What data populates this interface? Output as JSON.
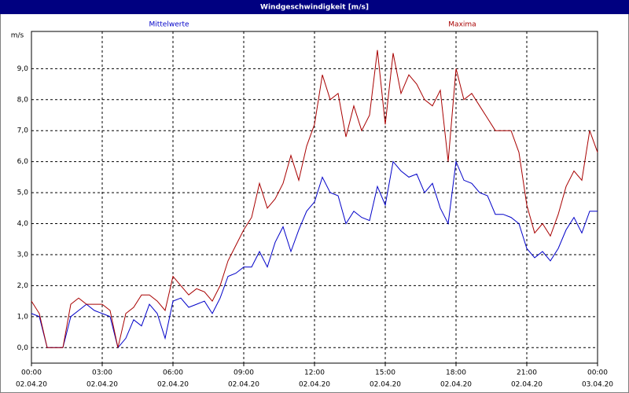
{
  "chart_data": {
    "type": "line",
    "title": "Windgeschwindigkeit [m/s]",
    "y_unit": "m/s",
    "x": [
      0,
      20,
      40,
      60,
      80,
      100,
      120,
      140,
      160,
      180,
      200,
      220,
      240,
      260,
      280,
      300,
      320,
      340,
      360,
      380,
      400,
      420,
      440,
      460,
      480,
      500,
      520,
      540,
      560,
      580,
      600,
      620,
      640,
      660,
      680,
      700,
      720,
      740,
      760,
      780,
      800,
      820,
      840,
      860,
      880,
      900,
      920,
      940,
      960,
      980,
      1000,
      1020,
      1040,
      1060,
      1080,
      1100,
      1120,
      1140,
      1160,
      1180,
      1200,
      1220,
      1240,
      1260,
      1280,
      1300,
      1320,
      1340,
      1360,
      1380,
      1400,
      1420,
      1440
    ],
    "xlim": [
      0,
      1440
    ],
    "xticks": [
      {
        "value": 0,
        "label": "00:00"
      },
      {
        "value": 180,
        "label": "03:00"
      },
      {
        "value": 360,
        "label": "06:00"
      },
      {
        "value": 540,
        "label": "09:00"
      },
      {
        "value": 720,
        "label": "12:00"
      },
      {
        "value": 900,
        "label": "15:00"
      },
      {
        "value": 1080,
        "label": "18:00"
      },
      {
        "value": 1260,
        "label": "21:00"
      },
      {
        "value": 1440,
        "label": "00:00"
      }
    ],
    "xtick_dates": [
      "02.04.20",
      "02.04.20",
      "02.04.20",
      "02.04.20",
      "02.04.20",
      "02.04.20",
      "02.04.20",
      "02.04.20",
      "03.04.20"
    ],
    "ylim": [
      -0.5,
      10.2
    ],
    "yticks": [
      {
        "value": 0,
        "label": "0,0"
      },
      {
        "value": 1,
        "label": "1,0"
      },
      {
        "value": 2,
        "label": "2,0"
      },
      {
        "value": 3,
        "label": "3,0"
      },
      {
        "value": 4,
        "label": "4,0"
      },
      {
        "value": 5,
        "label": "5,0"
      },
      {
        "value": 6,
        "label": "6,0"
      },
      {
        "value": 7,
        "label": "7,0"
      },
      {
        "value": 8,
        "label": "8,0"
      },
      {
        "value": 9,
        "label": "9,0"
      }
    ],
    "grid": true,
    "series": [
      {
        "name": "Mittelwerte",
        "color": "#0000c8",
        "values": [
          1.1,
          1.0,
          0,
          0,
          0,
          1.0,
          1.2,
          1.4,
          1.2,
          1.1,
          1.0,
          0,
          0.3,
          0.9,
          0.7,
          1.4,
          1.1,
          0.3,
          1.5,
          1.6,
          1.3,
          1.4,
          1.5,
          1.1,
          1.6,
          2.3,
          2.4,
          2.6,
          2.6,
          3.1,
          2.6,
          3.4,
          3.9,
          3.1,
          3.8,
          4.4,
          4.7,
          5.5,
          5.0,
          4.9,
          4.0,
          4.4,
          4.2,
          4.1,
          5.2,
          4.6,
          6.0,
          5.7,
          5.5,
          5.6,
          5.0,
          5.3,
          4.5,
          4.0,
          6.0,
          5.4,
          5.3,
          5.0,
          4.9,
          4.3,
          4.3,
          4.2,
          4.0,
          3.2,
          2.9,
          3.1,
          2.8,
          3.2,
          3.8,
          4.2,
          3.7,
          4.4,
          4.4
        ]
      },
      {
        "name": "Maxima",
        "color": "#a80000",
        "values": [
          1.5,
          1.1,
          0,
          0,
          0,
          1.4,
          1.6,
          1.4,
          1.4,
          1.4,
          1.2,
          0,
          1.1,
          1.3,
          1.7,
          1.7,
          1.5,
          1.2,
          2.3,
          2.0,
          1.7,
          1.9,
          1.8,
          1.5,
          2.0,
          2.8,
          3.3,
          3.8,
          4.2,
          5.3,
          4.5,
          4.8,
          5.3,
          6.2,
          5.4,
          6.5,
          7.2,
          8.8,
          8.0,
          8.2,
          6.8,
          7.8,
          7.0,
          7.5,
          9.6,
          7.2,
          9.5,
          8.2,
          8.8,
          8.5,
          8.0,
          7.8,
          8.3,
          6.0,
          9.0,
          8.0,
          8.2,
          7.8,
          7.4,
          7.0,
          7.0,
          7.0,
          6.3,
          4.6,
          3.7,
          4.0,
          3.6,
          4.3,
          5.2,
          5.7,
          5.4,
          7.0,
          6.3
        ]
      }
    ]
  }
}
